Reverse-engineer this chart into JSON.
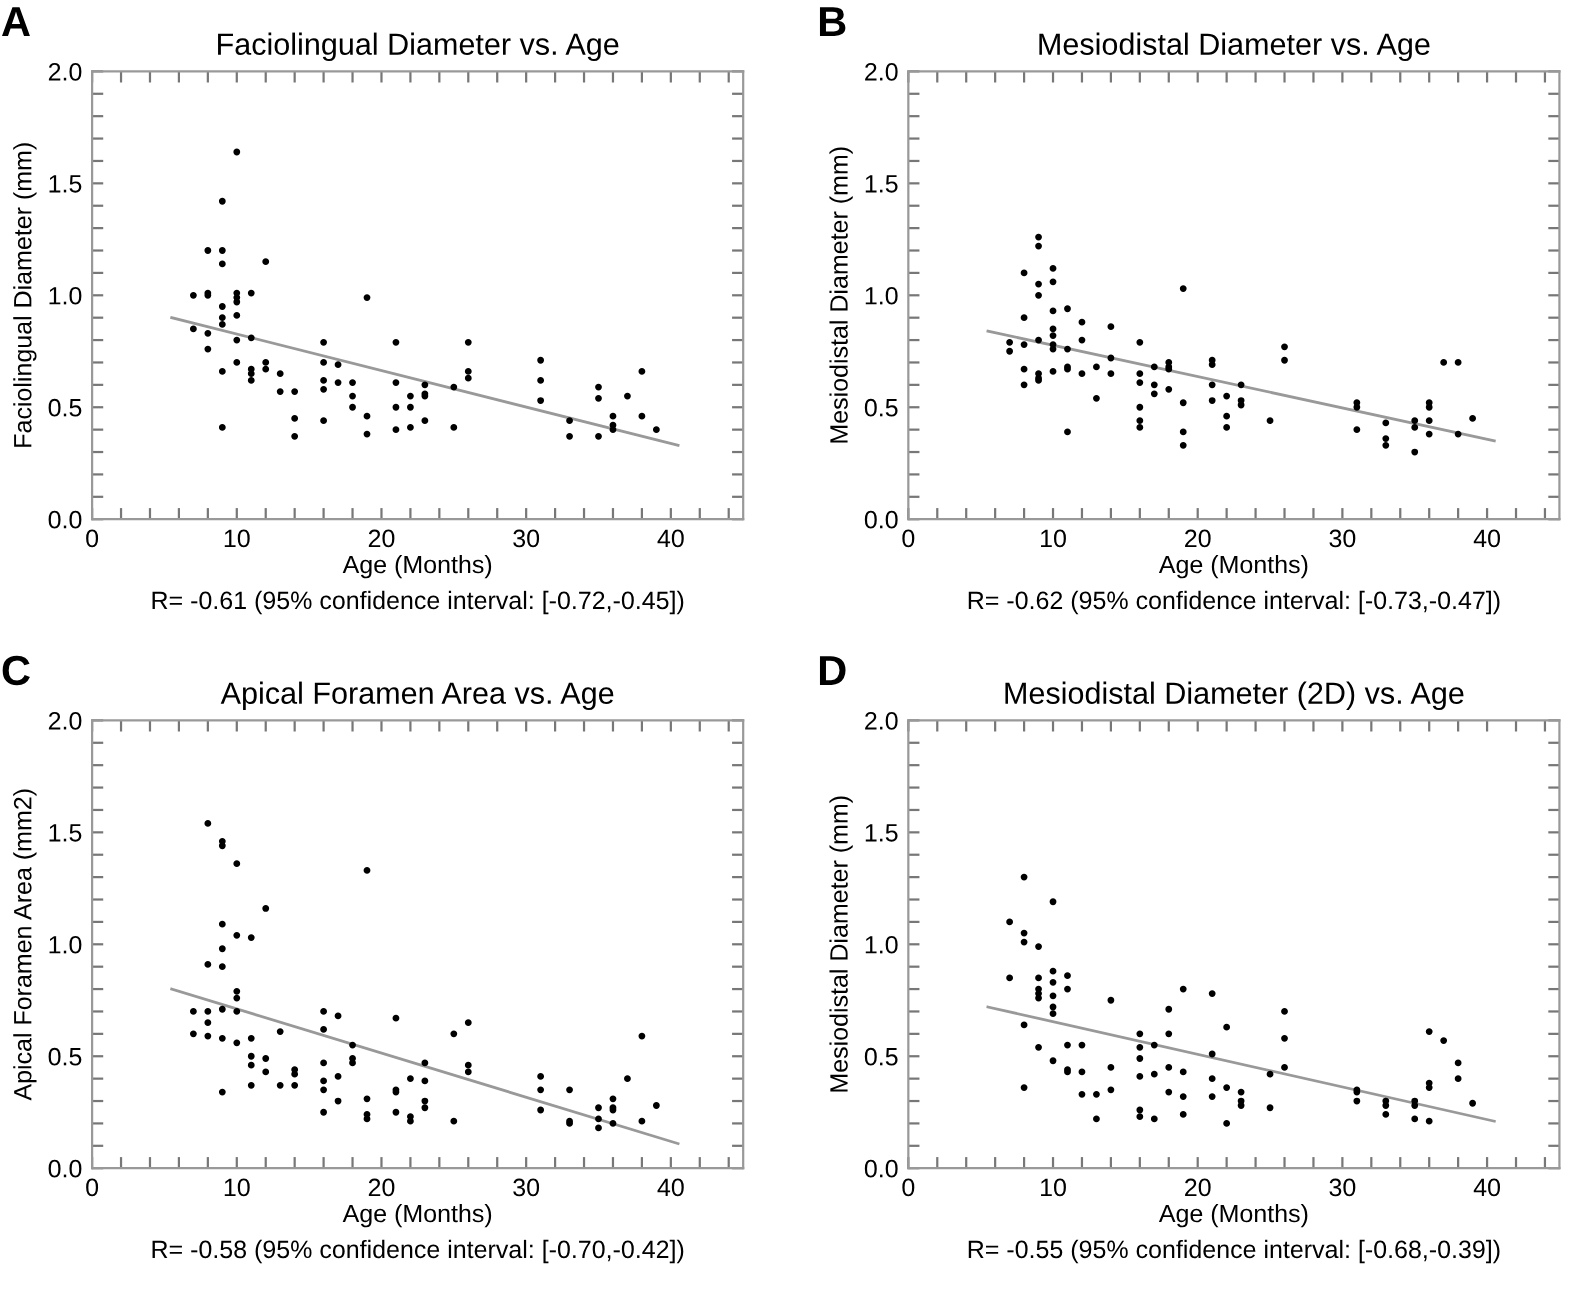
{
  "chart_data": [
    {
      "type": "scatter",
      "title": "Faciolingual Diameter vs. Age",
      "xlabel": "Age (Months)",
      "ylabel": "Faciolingual Diameter (mm)",
      "annotations": [
        "A",
        "R= -0.61 (95% confidence interval: [-0.72,-0.45])"
      ],
      "xlim": [
        0,
        45
      ],
      "ylim": [
        0,
        2.0
      ],
      "xticks": [
        0,
        {
          "value": 2,
          "label": null
        },
        {
          "value": 4,
          "label": null
        },
        {
          "value": 6,
          "label": null
        },
        {
          "value": 8,
          "label": null
        },
        10,
        {
          "value": 12,
          "label": null
        },
        {
          "value": 14,
          "label": null
        },
        {
          "value": 16,
          "label": null
        },
        {
          "value": 18,
          "label": null
        },
        20,
        {
          "value": 22,
          "label": null
        },
        {
          "value": 24,
          "label": null
        },
        {
          "value": 26,
          "label": null
        },
        {
          "value": 28,
          "label": null
        },
        30,
        {
          "value": 32,
          "label": null
        },
        {
          "value": 34,
          "label": null
        },
        {
          "value": 36,
          "label": null
        },
        {
          "value": 38,
          "label": null
        },
        40,
        {
          "value": 42,
          "label": null
        },
        {
          "value": 44,
          "label": null
        }
      ],
      "yticks": [
        {
          "value": 0,
          "label": "0.0"
        },
        {
          "value": 0.1,
          "label": null
        },
        {
          "value": 0.2,
          "label": null
        },
        {
          "value": 0.3,
          "label": null
        },
        {
          "value": 0.4,
          "label": null
        },
        {
          "value": 0.5,
          "label": "0.5"
        },
        {
          "value": 0.6,
          "label": null
        },
        {
          "value": 0.7,
          "label": null
        },
        {
          "value": 0.8,
          "label": null
        },
        {
          "value": 0.9,
          "label": null
        },
        {
          "value": 1,
          "label": "1.0"
        },
        {
          "value": 1.1,
          "label": null
        },
        {
          "value": 1.2,
          "label": null
        },
        {
          "value": 1.3,
          "label": null
        },
        {
          "value": 1.4,
          "label": null
        },
        {
          "value": 1.5,
          "label": "1.5"
        },
        {
          "value": 1.6,
          "label": null
        },
        {
          "value": 1.7,
          "label": null
        },
        {
          "value": 1.8,
          "label": null
        },
        {
          "value": 1.9,
          "label": null
        },
        {
          "value": 2,
          "label": "2.0"
        }
      ],
      "grid": false,
      "legend": false,
      "series": [
        {
          "color": "#000000",
          "marker": "circle",
          "x": [
            7,
            7,
            8,
            8,
            8,
            8,
            8,
            9,
            9,
            9,
            9,
            9,
            9,
            9,
            9,
            10,
            10,
            10,
            10,
            10,
            10,
            10,
            11,
            11,
            11,
            11,
            11,
            12,
            12,
            12,
            13,
            13,
            14,
            14,
            14,
            16,
            16,
            16,
            16,
            16,
            17,
            17,
            18,
            18,
            18,
            19,
            19,
            19,
            21,
            21,
            21,
            21,
            22,
            22,
            22,
            23,
            23,
            23,
            23,
            25,
            25,
            26,
            26,
            26,
            31,
            31,
            31,
            33,
            33,
            35,
            35,
            35,
            36,
            36,
            36,
            37,
            38,
            38,
            39
          ],
          "values": [
            1.0,
            0.85,
            1.2,
            1.01,
            1.0,
            0.83,
            0.76,
            1.42,
            1.2,
            1.14,
            0.95,
            0.9,
            0.87,
            0.66,
            0.41,
            1.64,
            1.01,
            0.99,
            0.97,
            0.91,
            0.8,
            0.7,
            1.01,
            0.81,
            0.67,
            0.65,
            0.62,
            1.15,
            0.7,
            0.67,
            0.65,
            0.57,
            0.57,
            0.45,
            0.37,
            0.79,
            0.7,
            0.62,
            0.58,
            0.44,
            0.69,
            0.61,
            0.61,
            0.55,
            0.5,
            0.99,
            0.46,
            0.38,
            0.79,
            0.61,
            0.5,
            0.4,
            0.55,
            0.5,
            0.41,
            0.6,
            0.56,
            0.55,
            0.44,
            0.59,
            0.41,
            0.79,
            0.66,
            0.63,
            0.71,
            0.62,
            0.53,
            0.44,
            0.37,
            0.59,
            0.54,
            0.37,
            0.46,
            0.42,
            0.4,
            0.55,
            0.66,
            0.46,
            0.4
          ]
        },
        {
          "type": "line",
          "color": "#999999",
          "marker": "none",
          "line_style": "solid",
          "x": [
            5.5,
            40.5
          ],
          "values": [
            0.9,
            0.33
          ]
        }
      ]
    },
    {
      "type": "scatter",
      "title": "Mesiodistal Diameter vs. Age",
      "xlabel": "Age (Months)",
      "ylabel": "Mesiodistal Diameter (mm)",
      "annotations": [
        "B",
        "R= -0.62 (95% confidence interval: [-0.73,-0.47])"
      ],
      "xlim": [
        0,
        45
      ],
      "ylim": [
        0,
        2.0
      ],
      "xticks": [
        0,
        {
          "value": 2,
          "label": null
        },
        {
          "value": 4,
          "label": null
        },
        {
          "value": 6,
          "label": null
        },
        {
          "value": 8,
          "label": null
        },
        10,
        {
          "value": 12,
          "label": null
        },
        {
          "value": 14,
          "label": null
        },
        {
          "value": 16,
          "label": null
        },
        {
          "value": 18,
          "label": null
        },
        20,
        {
          "value": 22,
          "label": null
        },
        {
          "value": 24,
          "label": null
        },
        {
          "value": 26,
          "label": null
        },
        {
          "value": 28,
          "label": null
        },
        30,
        {
          "value": 32,
          "label": null
        },
        {
          "value": 34,
          "label": null
        },
        {
          "value": 36,
          "label": null
        },
        {
          "value": 38,
          "label": null
        },
        40,
        {
          "value": 42,
          "label": null
        },
        {
          "value": 44,
          "label": null
        }
      ],
      "yticks": [
        {
          "value": 0,
          "label": "0.0"
        },
        {
          "value": 0.1,
          "label": null
        },
        {
          "value": 0.2,
          "label": null
        },
        {
          "value": 0.3,
          "label": null
        },
        {
          "value": 0.4,
          "label": null
        },
        {
          "value": 0.5,
          "label": "0.5"
        },
        {
          "value": 0.6,
          "label": null
        },
        {
          "value": 0.7,
          "label": null
        },
        {
          "value": 0.8,
          "label": null
        },
        {
          "value": 0.9,
          "label": null
        },
        {
          "value": 1,
          "label": "1.0"
        },
        {
          "value": 1.1,
          "label": null
        },
        {
          "value": 1.2,
          "label": null
        },
        {
          "value": 1.3,
          "label": null
        },
        {
          "value": 1.4,
          "label": null
        },
        {
          "value": 1.5,
          "label": "1.5"
        },
        {
          "value": 1.6,
          "label": null
        },
        {
          "value": 1.7,
          "label": null
        },
        {
          "value": 1.8,
          "label": null
        },
        {
          "value": 1.9,
          "label": null
        },
        {
          "value": 2,
          "label": "2.0"
        }
      ],
      "grid": false,
      "legend": false,
      "series": [
        {
          "color": "#000000",
          "marker": "circle",
          "x": [
            7,
            7,
            8,
            8,
            8,
            8,
            8,
            9,
            9,
            9,
            9,
            9,
            9,
            9,
            9,
            10,
            10,
            10,
            10,
            10,
            10,
            10,
            10,
            11,
            11,
            11,
            11,
            11,
            12,
            12,
            12,
            13,
            13,
            14,
            14,
            14,
            16,
            16,
            16,
            16,
            16,
            16,
            17,
            17,
            17,
            18,
            18,
            18,
            18,
            19,
            19,
            19,
            19,
            21,
            21,
            21,
            21,
            22,
            22,
            22,
            23,
            23,
            23,
            25,
            26,
            26,
            31,
            31,
            31,
            33,
            33,
            33,
            35,
            35,
            35,
            36,
            36,
            36,
            36,
            37,
            38,
            38,
            39
          ],
          "values": [
            0.79,
            0.75,
            1.1,
            0.9,
            0.78,
            0.67,
            0.6,
            1.26,
            1.22,
            1.05,
            1.0,
            0.8,
            0.65,
            0.63,
            0.62,
            1.12,
            1.06,
            0.93,
            0.85,
            0.82,
            0.78,
            0.76,
            0.66,
            0.94,
            0.76,
            0.68,
            0.67,
            0.39,
            0.88,
            0.8,
            0.65,
            0.68,
            0.54,
            0.86,
            0.72,
            0.65,
            0.79,
            0.65,
            0.61,
            0.5,
            0.44,
            0.41,
            0.68,
            0.6,
            0.56,
            0.7,
            0.68,
            0.67,
            0.58,
            1.03,
            0.52,
            0.39,
            0.33,
            0.71,
            0.69,
            0.6,
            0.53,
            0.55,
            0.46,
            0.41,
            0.6,
            0.53,
            0.51,
            0.44,
            0.77,
            0.71,
            0.52,
            0.5,
            0.4,
            0.43,
            0.36,
            0.33,
            0.44,
            0.41,
            0.3,
            0.52,
            0.5,
            0.44,
            0.38,
            0.7,
            0.7,
            0.38,
            0.45
          ]
        },
        {
          "type": "line",
          "color": "#999999",
          "marker": "none",
          "line_style": "solid",
          "x": [
            5.5,
            40.5
          ],
          "values": [
            0.84,
            0.35
          ]
        }
      ]
    },
    {
      "type": "scatter",
      "title": "Apical Foramen Area vs. Age",
      "xlabel": "Age (Months)",
      "ylabel": "Apical Foramen Area (mm2)",
      "annotations": [
        "C",
        "R= -0.58 (95% confidence interval: [-0.70,-0.42])"
      ],
      "xlim": [
        0,
        45
      ],
      "ylim": [
        0,
        2.0
      ],
      "xticks": [
        0,
        {
          "value": 2,
          "label": null
        },
        {
          "value": 4,
          "label": null
        },
        {
          "value": 6,
          "label": null
        },
        {
          "value": 8,
          "label": null
        },
        10,
        {
          "value": 12,
          "label": null
        },
        {
          "value": 14,
          "label": null
        },
        {
          "value": 16,
          "label": null
        },
        {
          "value": 18,
          "label": null
        },
        20,
        {
          "value": 22,
          "label": null
        },
        {
          "value": 24,
          "label": null
        },
        {
          "value": 26,
          "label": null
        },
        {
          "value": 28,
          "label": null
        },
        30,
        {
          "value": 32,
          "label": null
        },
        {
          "value": 34,
          "label": null
        },
        {
          "value": 36,
          "label": null
        },
        {
          "value": 38,
          "label": null
        },
        40,
        {
          "value": 42,
          "label": null
        },
        {
          "value": 44,
          "label": null
        }
      ],
      "yticks": [
        {
          "value": 0,
          "label": "0.0"
        },
        {
          "value": 0.1,
          "label": null
        },
        {
          "value": 0.2,
          "label": null
        },
        {
          "value": 0.3,
          "label": null
        },
        {
          "value": 0.4,
          "label": null
        },
        {
          "value": 0.5,
          "label": "0.5"
        },
        {
          "value": 0.6,
          "label": null
        },
        {
          "value": 0.7,
          "label": null
        },
        {
          "value": 0.8,
          "label": null
        },
        {
          "value": 0.9,
          "label": null
        },
        {
          "value": 1,
          "label": "1.0"
        },
        {
          "value": 1.1,
          "label": null
        },
        {
          "value": 1.2,
          "label": null
        },
        {
          "value": 1.3,
          "label": null
        },
        {
          "value": 1.4,
          "label": null
        },
        {
          "value": 1.5,
          "label": "1.5"
        },
        {
          "value": 1.6,
          "label": null
        },
        {
          "value": 1.7,
          "label": null
        },
        {
          "value": 1.8,
          "label": null
        },
        {
          "value": 1.9,
          "label": null
        },
        {
          "value": 2,
          "label": "2.0"
        }
      ],
      "grid": false,
      "legend": false,
      "series": [
        {
          "color": "#000000",
          "marker": "circle",
          "x": [
            7,
            7,
            8,
            8,
            8,
            8,
            8,
            9,
            9,
            9,
            9,
            9,
            9,
            9,
            9,
            10,
            10,
            10,
            10,
            10,
            10,
            11,
            11,
            11,
            11,
            11,
            12,
            12,
            12,
            13,
            13,
            14,
            14,
            14,
            16,
            16,
            16,
            16,
            16,
            16,
            17,
            17,
            17,
            18,
            18,
            18,
            19,
            19,
            19,
            19,
            21,
            21,
            21,
            21,
            22,
            22,
            22,
            23,
            23,
            23,
            23,
            25,
            25,
            26,
            26,
            26,
            31,
            31,
            31,
            33,
            33,
            33,
            35,
            35,
            35,
            36,
            36,
            36,
            36,
            37,
            38,
            38,
            39
          ],
          "values": [
            0.7,
            0.6,
            1.54,
            0.91,
            0.7,
            0.65,
            0.59,
            1.46,
            1.44,
            1.09,
            0.98,
            0.9,
            0.71,
            0.58,
            0.34,
            1.36,
            1.04,
            0.79,
            0.76,
            0.7,
            0.56,
            1.03,
            0.58,
            0.5,
            0.46,
            0.37,
            1.16,
            0.49,
            0.43,
            0.61,
            0.37,
            0.44,
            0.42,
            0.37,
            0.7,
            0.62,
            0.47,
            0.39,
            0.35,
            0.25,
            0.68,
            0.41,
            0.3,
            0.55,
            0.49,
            0.47,
            1.33,
            0.31,
            0.24,
            0.22,
            0.67,
            0.35,
            0.34,
            0.25,
            0.4,
            0.23,
            0.21,
            0.47,
            0.39,
            0.3,
            0.27,
            0.6,
            0.21,
            0.65,
            0.46,
            0.43,
            0.41,
            0.35,
            0.26,
            0.35,
            0.21,
            0.2,
            0.27,
            0.22,
            0.18,
            0.31,
            0.27,
            0.26,
            0.2,
            0.4,
            0.59,
            0.21,
            0.28
          ]
        },
        {
          "type": "line",
          "color": "#999999",
          "marker": "none",
          "line_style": "solid",
          "x": [
            5.5,
            40.5
          ],
          "values": [
            0.8,
            0.11
          ]
        }
      ]
    },
    {
      "type": "scatter",
      "title": "Mesiodistal Diameter (2D) vs. Age",
      "xlabel": "Age (Months)",
      "ylabel": "Mesiodistal Diameter (mm)",
      "annotations": [
        "D",
        "R= -0.55 (95% confidence interval: [-0.68,-0.39])"
      ],
      "xlim": [
        0,
        45
      ],
      "ylim": [
        0,
        2.0
      ],
      "xticks": [
        0,
        {
          "value": 2,
          "label": null
        },
        {
          "value": 4,
          "label": null
        },
        {
          "value": 6,
          "label": null
        },
        {
          "value": 8,
          "label": null
        },
        10,
        {
          "value": 12,
          "label": null
        },
        {
          "value": 14,
          "label": null
        },
        {
          "value": 16,
          "label": null
        },
        {
          "value": 18,
          "label": null
        },
        20,
        {
          "value": 22,
          "label": null
        },
        {
          "value": 24,
          "label": null
        },
        {
          "value": 26,
          "label": null
        },
        {
          "value": 28,
          "label": null
        },
        30,
        {
          "value": 32,
          "label": null
        },
        {
          "value": 34,
          "label": null
        },
        {
          "value": 36,
          "label": null
        },
        {
          "value": 38,
          "label": null
        },
        40,
        {
          "value": 42,
          "label": null
        },
        {
          "value": 44,
          "label": null
        }
      ],
      "yticks": [
        {
          "value": 0,
          "label": "0.0"
        },
        {
          "value": 0.1,
          "label": null
        },
        {
          "value": 0.2,
          "label": null
        },
        {
          "value": 0.3,
          "label": null
        },
        {
          "value": 0.4,
          "label": null
        },
        {
          "value": 0.5,
          "label": "0.5"
        },
        {
          "value": 0.6,
          "label": null
        },
        {
          "value": 0.7,
          "label": null
        },
        {
          "value": 0.8,
          "label": null
        },
        {
          "value": 0.9,
          "label": null
        },
        {
          "value": 1,
          "label": "1.0"
        },
        {
          "value": 1.1,
          "label": null
        },
        {
          "value": 1.2,
          "label": null
        },
        {
          "value": 1.3,
          "label": null
        },
        {
          "value": 1.4,
          "label": null
        },
        {
          "value": 1.5,
          "label": "1.5"
        },
        {
          "value": 1.6,
          "label": null
        },
        {
          "value": 1.7,
          "label": null
        },
        {
          "value": 1.8,
          "label": null
        },
        {
          "value": 1.9,
          "label": null
        },
        {
          "value": 2,
          "label": "2.0"
        }
      ],
      "grid": false,
      "legend": false,
      "series": [
        {
          "color": "#000000",
          "marker": "circle",
          "x": [
            7,
            7,
            8,
            8,
            8,
            8,
            8,
            9,
            9,
            9,
            9,
            9,
            9,
            10,
            10,
            10,
            10,
            10,
            10,
            10,
            11,
            11,
            11,
            11,
            11,
            12,
            12,
            12,
            13,
            13,
            14,
            14,
            14,
            16,
            16,
            16,
            16,
            16,
            16,
            17,
            17,
            17,
            18,
            18,
            18,
            18,
            19,
            19,
            19,
            19,
            21,
            21,
            21,
            21,
            22,
            22,
            22,
            23,
            23,
            23,
            25,
            25,
            26,
            26,
            26,
            31,
            31,
            31,
            33,
            33,
            33,
            35,
            35,
            35,
            36,
            36,
            36,
            36,
            37,
            38,
            38,
            39
          ],
          "values": [
            1.1,
            0.85,
            1.3,
            1.05,
            1.01,
            0.64,
            0.36,
            0.99,
            0.85,
            0.8,
            0.78,
            0.76,
            0.54,
            1.19,
            0.88,
            0.83,
            0.77,
            0.72,
            0.69,
            0.48,
            0.86,
            0.8,
            0.55,
            0.44,
            0.43,
            0.55,
            0.43,
            0.33,
            0.33,
            0.22,
            0.75,
            0.45,
            0.35,
            0.6,
            0.54,
            0.49,
            0.41,
            0.26,
            0.23,
            0.55,
            0.42,
            0.22,
            0.71,
            0.6,
            0.45,
            0.34,
            0.8,
            0.43,
            0.32,
            0.24,
            0.78,
            0.51,
            0.4,
            0.32,
            0.63,
            0.36,
            0.2,
            0.34,
            0.3,
            0.28,
            0.42,
            0.27,
            0.7,
            0.58,
            0.45,
            0.35,
            0.34,
            0.3,
            0.3,
            0.28,
            0.24,
            0.3,
            0.28,
            0.22,
            0.61,
            0.38,
            0.36,
            0.21,
            0.57,
            0.47,
            0.4,
            0.29
          ]
        },
        {
          "type": "line",
          "color": "#999999",
          "marker": "none",
          "line_style": "solid",
          "x": [
            5.5,
            40.5
          ],
          "values": [
            0.72,
            0.21
          ]
        }
      ]
    }
  ]
}
